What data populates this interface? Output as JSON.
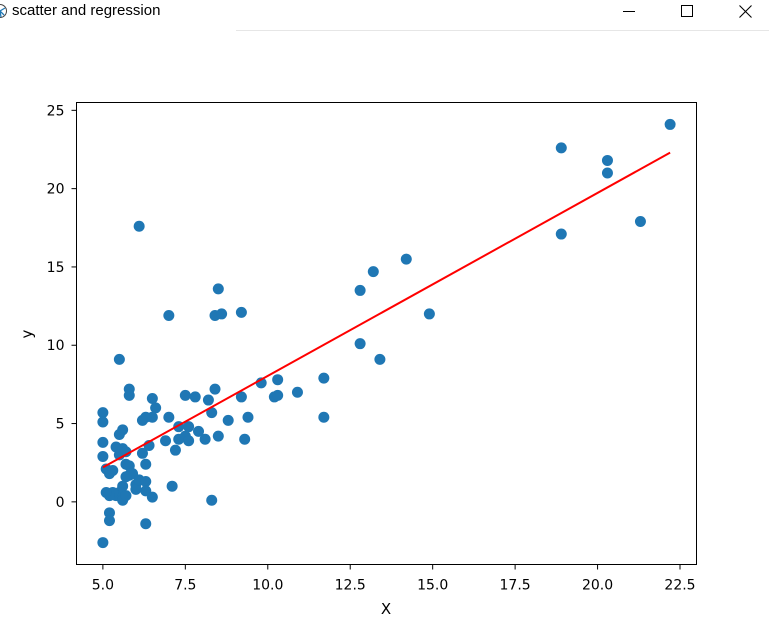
{
  "window": {
    "title": "scatter and regression",
    "icons": {
      "app": "matplotlib-app-icon",
      "minimize": "minimize-icon",
      "maximize": "maximize-icon",
      "close": "close-icon"
    }
  },
  "chart_data": {
    "type": "scatter",
    "title": "",
    "xlabel": "X",
    "ylabel": "y",
    "xlim": [
      4.2,
      23.0
    ],
    "ylim": [
      -4.0,
      25.5
    ],
    "xticks": [
      5.0,
      7.5,
      10.0,
      12.5,
      15.0,
      17.5,
      20.0,
      22.5
    ],
    "xtick_labels": [
      "5.0",
      "7.5",
      "10.0",
      "12.5",
      "15.0",
      "17.5",
      "20.0",
      "22.5"
    ],
    "yticks": [
      0,
      5,
      10,
      15,
      20,
      25
    ],
    "ytick_labels": [
      "0",
      "5",
      "10",
      "15",
      "20",
      "25"
    ],
    "grid": false,
    "legend": "none",
    "series": [
      {
        "kind": "scatter",
        "color": "#1f77b4",
        "points": [
          [
            6.1,
            17.6
          ],
          [
            5.5,
            9.1
          ],
          [
            8.5,
            13.6
          ],
          [
            8.4,
            11.9
          ],
          [
            8.6,
            12.0
          ],
          [
            9.2,
            12.1
          ],
          [
            7.0,
            11.9
          ],
          [
            5.8,
            7.2
          ],
          [
            5.8,
            6.8
          ],
          [
            6.5,
            6.6
          ],
          [
            6.6,
            6.0
          ],
          [
            6.5,
            5.4
          ],
          [
            6.3,
            5.4
          ],
          [
            6.2,
            5.2
          ],
          [
            5.0,
            5.7
          ],
          [
            5.0,
            5.1
          ],
          [
            5.0,
            3.8
          ],
          [
            5.0,
            2.9
          ],
          [
            5.1,
            2.1
          ],
          [
            5.2,
            1.8
          ],
          [
            5.3,
            2.0
          ],
          [
            5.4,
            3.5
          ],
          [
            5.5,
            3.0
          ],
          [
            5.5,
            4.3
          ],
          [
            5.6,
            4.6
          ],
          [
            5.6,
            3.4
          ],
          [
            5.7,
            3.2
          ],
          [
            5.7,
            2.4
          ],
          [
            5.8,
            2.3
          ],
          [
            5.8,
            1.7
          ],
          [
            5.9,
            1.8
          ],
          [
            5.7,
            1.6
          ],
          [
            6.0,
            1.1
          ],
          [
            6.0,
            0.8
          ],
          [
            6.1,
            1.4
          ],
          [
            5.6,
            1.0
          ],
          [
            5.5,
            0.6
          ],
          [
            5.4,
            0.4
          ],
          [
            5.3,
            0.6
          ],
          [
            5.2,
            0.4
          ],
          [
            5.1,
            0.6
          ],
          [
            5.6,
            0.1
          ],
          [
            5.7,
            0.4
          ],
          [
            5.2,
            -0.7
          ],
          [
            5.2,
            -1.2
          ],
          [
            5.0,
            -2.6
          ],
          [
            6.3,
            1.3
          ],
          [
            6.3,
            0.7
          ],
          [
            6.5,
            0.3
          ],
          [
            6.3,
            -1.4
          ],
          [
            6.2,
            3.1
          ],
          [
            6.3,
            2.4
          ],
          [
            6.4,
            3.6
          ],
          [
            6.9,
            3.9
          ],
          [
            7.0,
            5.4
          ],
          [
            7.1,
            1.0
          ],
          [
            7.2,
            3.3
          ],
          [
            7.3,
            4.0
          ],
          [
            7.3,
            4.8
          ],
          [
            7.5,
            4.2
          ],
          [
            7.6,
            3.9
          ],
          [
            7.6,
            4.8
          ],
          [
            7.5,
            6.8
          ],
          [
            7.8,
            6.7
          ],
          [
            7.9,
            4.5
          ],
          [
            8.1,
            4.0
          ],
          [
            8.2,
            6.5
          ],
          [
            8.3,
            5.7
          ],
          [
            8.4,
            7.2
          ],
          [
            8.5,
            4.2
          ],
          [
            8.3,
            0.1
          ],
          [
            8.8,
            5.2
          ],
          [
            9.2,
            6.7
          ],
          [
            9.3,
            4.0
          ],
          [
            9.4,
            5.4
          ],
          [
            9.8,
            7.6
          ],
          [
            10.2,
            6.7
          ],
          [
            10.3,
            6.8
          ],
          [
            10.3,
            7.8
          ],
          [
            10.9,
            7.0
          ],
          [
            11.7,
            7.9
          ],
          [
            11.7,
            5.4
          ],
          [
            12.8,
            13.5
          ],
          [
            12.8,
            10.1
          ],
          [
            13.2,
            14.7
          ],
          [
            13.4,
            9.1
          ],
          [
            14.2,
            15.5
          ],
          [
            14.9,
            12.0
          ],
          [
            18.9,
            22.6
          ],
          [
            18.9,
            17.1
          ],
          [
            20.3,
            21.8
          ],
          [
            20.3,
            21.0
          ],
          [
            21.3,
            17.9
          ],
          [
            22.2,
            24.1
          ]
        ]
      },
      {
        "kind": "regression-line",
        "color": "#ff0000",
        "points": [
          [
            5.0,
            2.2
          ],
          [
            22.2,
            22.3
          ]
        ]
      }
    ]
  }
}
